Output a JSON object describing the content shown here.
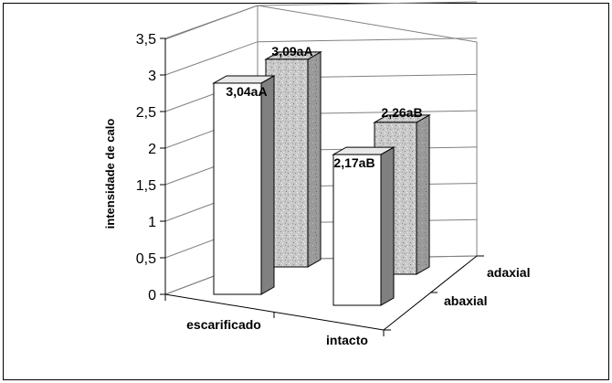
{
  "chart_data": {
    "type": "bar",
    "style": "3d-clustered",
    "ylabel": "intensidade de calo",
    "xlabel": "",
    "ylim": [
      0,
      3.5
    ],
    "yticks": [
      "0",
      "0,5",
      "1",
      "1,5",
      "2",
      "2,5",
      "3",
      "3,5"
    ],
    "categories": [
      "escarificado",
      "intacto"
    ],
    "series": [
      {
        "name": "abaxial",
        "values": [
          3.04,
          2.17
        ],
        "data_labels": [
          "3,04aA",
          "2,17aB"
        ],
        "fill": "#ffffff",
        "side": "#808080"
      },
      {
        "name": "adaxial",
        "values": [
          3.09,
          2.26
        ],
        "data_labels": [
          "3,09aA",
          "2,26aB"
        ],
        "fill": "#c8c8c8",
        "side": "#9a9a9a"
      }
    ],
    "grid": true,
    "legend": "none"
  }
}
